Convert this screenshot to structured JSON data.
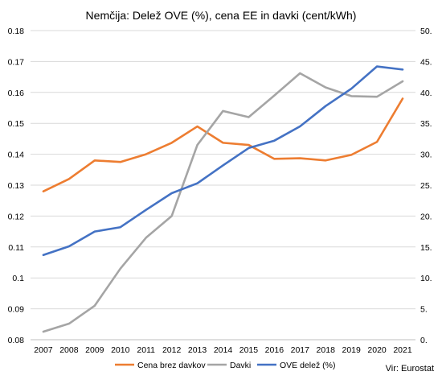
{
  "chart_data": {
    "type": "line",
    "title": "Nemčija: Delež OVE (%), cena EE in davki (cent/kWh)",
    "source": "Vir: Eurostat",
    "categories": [
      "2007",
      "2008",
      "2009",
      "2010",
      "2011",
      "2012",
      "2013",
      "2014",
      "2015",
      "2016",
      "2017",
      "2018",
      "2019",
      "2020",
      "2021"
    ],
    "left_axis": {
      "min": 0.08,
      "max": 0.18,
      "ticks": [
        0.08,
        0.09,
        0.1,
        0.11,
        0.12,
        0.13,
        0.14,
        0.15,
        0.16,
        0.17,
        0.18
      ],
      "tick_labels": [
        "0.08",
        "0.09",
        "0.1",
        "0.11",
        "0.12",
        "0.13",
        "0.14",
        "0.15",
        "0.16",
        "0.17",
        "0.18"
      ]
    },
    "right_axis": {
      "min": 0,
      "max": 50,
      "ticks": [
        0,
        5,
        10,
        15,
        20,
        25,
        30,
        35,
        40,
        45,
        50
      ],
      "tick_labels": [
        "0.",
        "5.",
        "10.",
        "15.",
        "20.",
        "25.",
        "30.",
        "35.",
        "40.",
        "45.",
        "50."
      ]
    },
    "grid": true,
    "legend_position": "bottom",
    "series": [
      {
        "name": "Cena brez davkov",
        "axis": "left",
        "color": "#ed7d31",
        "values": [
          0.128,
          0.132,
          0.138,
          0.1375,
          0.14,
          0.1437,
          0.149,
          0.1437,
          0.143,
          0.1385,
          0.1387,
          0.138,
          0.1398,
          0.144,
          0.158
        ]
      },
      {
        "name": "Davki",
        "axis": "right",
        "color": "#a5a5a5",
        "values": [
          1.3,
          2.6,
          5.5,
          11.5,
          16.5,
          20.0,
          31.5,
          37.0,
          36.0,
          39.5,
          43.1,
          40.8,
          39.4,
          39.3,
          41.8
        ]
      },
      {
        "name": "OVE delež (%)",
        "axis": "right",
        "color": "#4472c4",
        "values": [
          13.7,
          15.1,
          17.5,
          18.2,
          21.0,
          23.7,
          25.3,
          28.2,
          31.0,
          32.2,
          34.5,
          37.8,
          40.6,
          44.2,
          43.7
        ]
      }
    ]
  }
}
